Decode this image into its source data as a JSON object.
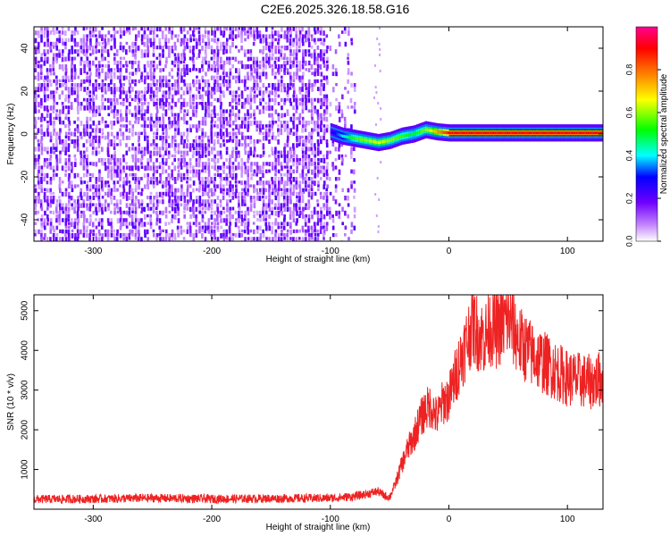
{
  "title": "C2E6.2025.326.18.58.G16",
  "chart_data": [
    {
      "type": "heatmap",
      "xlabel": "Height of straight line (km)",
      "ylabel": "Frequency (Hz)",
      "xlim": [
        -350,
        130
      ],
      "ylim": [
        -50,
        50
      ],
      "xticks": [
        "-300",
        "-200",
        "-100",
        "0",
        "100"
      ],
      "yticks": [
        "-40",
        "-20",
        "0",
        "20",
        "40"
      ],
      "grid": false,
      "colorbar": {
        "label": "Normalized spectral amplitude",
        "range": [
          0,
          1
        ],
        "ticks": [
          "0.0",
          "0.2",
          "0.4",
          "0.6",
          "0.8"
        ],
        "colors": [
          "#ffffff",
          "#a020f0",
          "#0000ff",
          "#00ffff",
          "#00ff00",
          "#ffff00",
          "#ff8000",
          "#ff0000",
          "#ff00a0"
        ]
      },
      "noise_region_x": [
        -350,
        -80
      ],
      "signal_track": {
        "x": [
          -100,
          -90,
          -80,
          -70,
          -60,
          -50,
          -40,
          -30,
          -20,
          -10,
          0,
          130
        ],
        "frequency": [
          1,
          -1,
          -2,
          -3,
          -4,
          -3,
          -1,
          0,
          2,
          1,
          0.5,
          0.5
        ],
        "amplitude": [
          0.25,
          0.4,
          0.55,
          0.6,
          0.65,
          0.6,
          0.55,
          0.5,
          0.6,
          0.75,
          0.9,
          0.9
        ]
      }
    },
    {
      "type": "line",
      "xlabel": "Height of straight line (km)",
      "ylabel": "SNR (10 * v/v)",
      "xlim": [
        -350,
        130
      ],
      "ylim": [
        0,
        5400
      ],
      "xticks": [
        "-300",
        "-200",
        "-100",
        "0",
        "100"
      ],
      "yticks": [
        "1000",
        "2000",
        "3000",
        "4000",
        "5000"
      ],
      "grid": false,
      "series": [
        {
          "color": "#ee2222",
          "x": [
            -350,
            -300,
            -250,
            -200,
            -150,
            -100,
            -80,
            -70,
            -60,
            -55,
            -50,
            -45,
            -40,
            -35,
            -30,
            -25,
            -20,
            -15,
            -10,
            -5,
            0,
            5,
            10,
            15,
            20,
            25,
            30,
            35,
            40,
            45,
            50,
            55,
            60,
            70,
            80,
            90,
            100,
            110,
            120,
            130
          ],
          "values": [
            250,
            260,
            280,
            260,
            270,
            280,
            320,
            380,
            450,
            350,
            300,
            650,
            1100,
            1500,
            1800,
            2200,
            2500,
            2600,
            2300,
            2700,
            2800,
            3300,
            3800,
            4200,
            4700,
            4400,
            4300,
            4600,
            4500,
            4650,
            4800,
            4500,
            4200,
            3900,
            3700,
            3500,
            3300,
            3250,
            3200,
            3300
          ]
        }
      ]
    }
  ]
}
